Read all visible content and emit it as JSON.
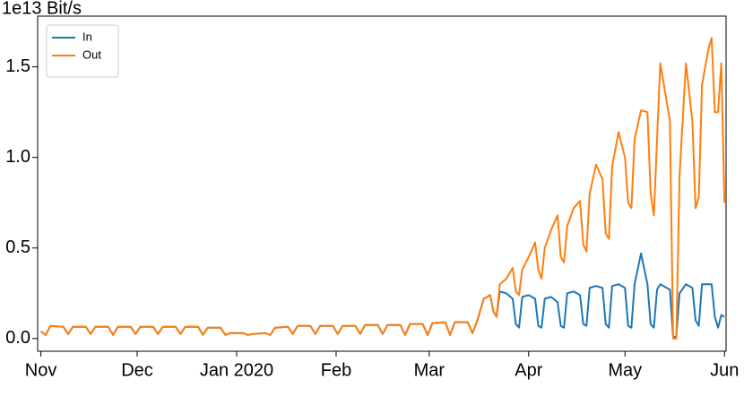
{
  "chart_data": {
    "type": "line",
    "ylabel": "1e13 Bit/s",
    "x": [
      0,
      1.5,
      3,
      7,
      8.5,
      10,
      14,
      15.5,
      17,
      21,
      22.5,
      24,
      28,
      29.5,
      31,
      35,
      36.5,
      38,
      42,
      43.5,
      45,
      49,
      50.5,
      52,
      56,
      57.5,
      59,
      63,
      64.5,
      66,
      70,
      71.5,
      73,
      77,
      78.5,
      80,
      84,
      85.5,
      87,
      91,
      92.5,
      94,
      98,
      99.5,
      101,
      105,
      106.5,
      108,
      112,
      113.5,
      115,
      119,
      120.5,
      122,
      126,
      127.5,
      129,
      133,
      134.5,
      136,
      138,
      140,
      141,
      142,
      143,
      145,
      147,
      148,
      149,
      150,
      152,
      154,
      155,
      156,
      157,
      159,
      161,
      162,
      163,
      164,
      166,
      168,
      169,
      170,
      171,
      173,
      175,
      176,
      177,
      178,
      180,
      182,
      183,
      184,
      185,
      187,
      189,
      190,
      191,
      192,
      193,
      196,
      197,
      198,
      199,
      201,
      203,
      204,
      205,
      206,
      208,
      209,
      210,
      211,
      212,
      213
    ],
    "series": [
      {
        "name": "In",
        "color": "#1f77b4",
        "values": [
          0.04,
          0.02,
          0.07,
          0.065,
          0.025,
          0.065,
          0.065,
          0.025,
          0.065,
          0.065,
          0.02,
          0.065,
          0.065,
          0.025,
          0.065,
          0.065,
          0.025,
          0.065,
          0.065,
          0.025,
          0.065,
          0.065,
          0.02,
          0.06,
          0.06,
          0.02,
          0.03,
          0.03,
          0.02,
          0.025,
          0.03,
          0.02,
          0.06,
          0.065,
          0.025,
          0.07,
          0.07,
          0.025,
          0.07,
          0.07,
          0.025,
          0.07,
          0.07,
          0.025,
          0.075,
          0.075,
          0.025,
          0.075,
          0.075,
          0.02,
          0.08,
          0.08,
          0.02,
          0.085,
          0.09,
          0.02,
          0.09,
          0.09,
          0.03,
          0.1,
          0.22,
          0.24,
          0.15,
          0.12,
          0.26,
          0.25,
          0.22,
          0.08,
          0.06,
          0.23,
          0.24,
          0.22,
          0.07,
          0.06,
          0.22,
          0.23,
          0.2,
          0.07,
          0.06,
          0.25,
          0.26,
          0.24,
          0.08,
          0.07,
          0.28,
          0.29,
          0.28,
          0.08,
          0.06,
          0.29,
          0.3,
          0.28,
          0.07,
          0.06,
          0.3,
          0.47,
          0.3,
          0.08,
          0.06,
          0.27,
          0.3,
          0.27,
          0.01,
          0.01,
          0.25,
          0.3,
          0.28,
          0.1,
          0.07,
          0.3,
          0.3,
          0.3,
          0.12,
          0.06,
          0.13,
          0.12
        ]
      },
      {
        "name": "Out",
        "color": "#ff7f0e",
        "values": [
          0.04,
          0.02,
          0.07,
          0.065,
          0.025,
          0.065,
          0.065,
          0.025,
          0.065,
          0.065,
          0.02,
          0.065,
          0.065,
          0.025,
          0.065,
          0.065,
          0.025,
          0.065,
          0.065,
          0.025,
          0.065,
          0.065,
          0.02,
          0.06,
          0.06,
          0.02,
          0.03,
          0.03,
          0.02,
          0.025,
          0.03,
          0.02,
          0.06,
          0.065,
          0.025,
          0.07,
          0.07,
          0.025,
          0.07,
          0.07,
          0.025,
          0.07,
          0.07,
          0.025,
          0.075,
          0.075,
          0.025,
          0.075,
          0.075,
          0.02,
          0.08,
          0.08,
          0.02,
          0.085,
          0.09,
          0.02,
          0.09,
          0.09,
          0.03,
          0.1,
          0.22,
          0.24,
          0.15,
          0.12,
          0.3,
          0.33,
          0.39,
          0.26,
          0.24,
          0.38,
          0.45,
          0.53,
          0.38,
          0.33,
          0.5,
          0.6,
          0.68,
          0.45,
          0.42,
          0.62,
          0.72,
          0.76,
          0.52,
          0.48,
          0.8,
          0.96,
          0.88,
          0.58,
          0.55,
          0.95,
          1.14,
          1.0,
          0.75,
          0.72,
          1.1,
          1.26,
          1.25,
          0.8,
          0.68,
          1.1,
          1.52,
          1.2,
          0.0,
          0.0,
          0.9,
          1.52,
          1.2,
          0.72,
          0.78,
          1.4,
          1.6,
          1.66,
          1.25,
          1.25,
          1.52,
          0.75
        ]
      }
    ],
    "xlim": [
      -1,
      213.5
    ],
    "xticks": [
      {
        "value": 0,
        "label": "Nov"
      },
      {
        "value": 30,
        "label": "Dec"
      },
      {
        "value": 61,
        "label": "Jan 2020"
      },
      {
        "value": 92,
        "label": "Feb"
      },
      {
        "value": 121,
        "label": "Mar"
      },
      {
        "value": 152,
        "label": "Apr"
      },
      {
        "value": 182,
        "label": "May"
      },
      {
        "value": 213,
        "label": "Jun"
      }
    ],
    "ylim": [
      -0.07,
      1.78
    ],
    "yticks": [
      {
        "value": 0,
        "label": "0.0"
      },
      0.5,
      {
        "value": 1,
        "label": "1.0"
      },
      1.5
    ],
    "legend": "upper left"
  }
}
